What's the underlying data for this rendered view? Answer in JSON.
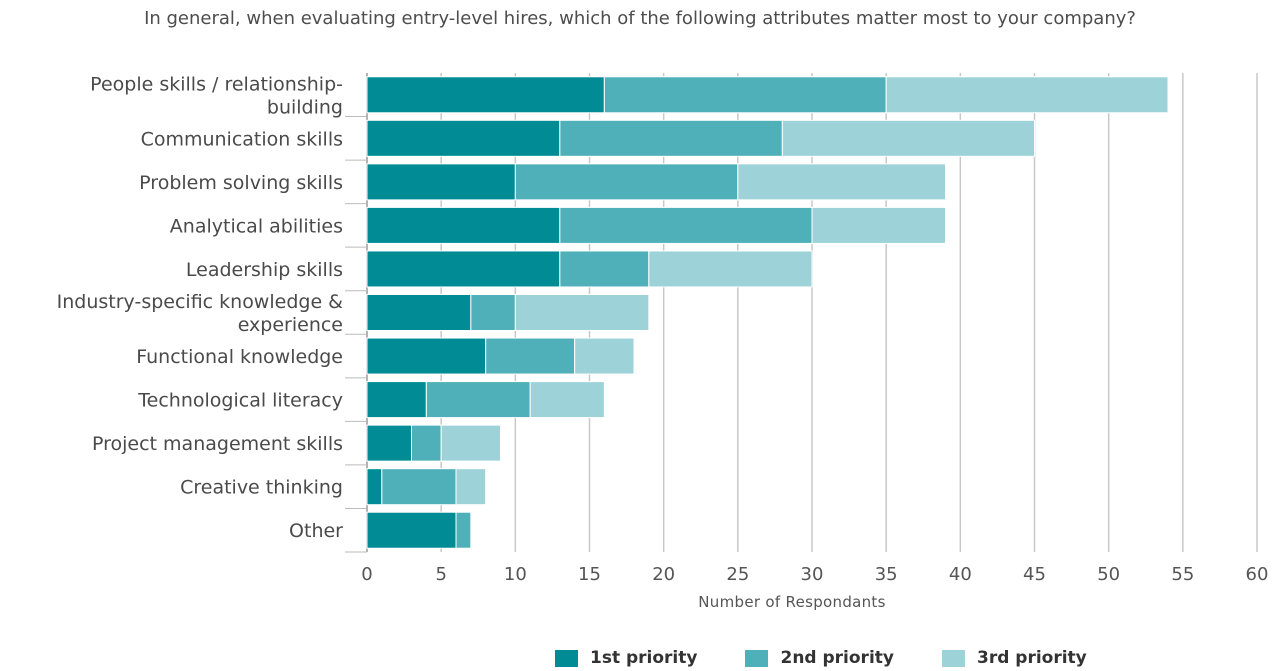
{
  "chart_data": {
    "type": "bar",
    "orientation": "horizontal",
    "stacked": true,
    "title": "In general, when evaluating entry-level hires, which of the following attributes matter most to your company?",
    "xlabel": "Number of Respondants",
    "ylabel": "",
    "xlim": [
      0,
      60
    ],
    "xticks": [
      0,
      5,
      10,
      15,
      20,
      25,
      30,
      35,
      40,
      45,
      50,
      55,
      60
    ],
    "grid": "vertical",
    "legend_position": "bottom",
    "categories": [
      "People skills / relationship-building",
      "Communication skills",
      "Problem solving skills",
      "Analytical abilities",
      "Leadership skills",
      "Industry-specific knowledge & experience",
      "Functional knowledge",
      "Technological literacy",
      "Project management skills",
      "Creative thinking",
      "Other"
    ],
    "category_lines": [
      [
        "People skills / relationship-",
        "building"
      ],
      [
        "Communication skills"
      ],
      [
        "Problem solving skills"
      ],
      [
        "Analytical abilities"
      ],
      [
        "Leadership skills"
      ],
      [
        "Industry-specific knowledge &",
        "experience"
      ],
      [
        "Functional knowledge"
      ],
      [
        "Technological literacy"
      ],
      [
        "Project management skills"
      ],
      [
        "Creative thinking"
      ],
      [
        "Other"
      ]
    ],
    "series": [
      {
        "name": "1st priority",
        "color": "#008b95",
        "values": [
          16,
          13,
          10,
          13,
          13,
          7,
          8,
          4,
          3,
          1,
          6
        ]
      },
      {
        "name": "2nd priority",
        "color": "#4fb0b9",
        "values": [
          19,
          15,
          15,
          17,
          6,
          3,
          6,
          7,
          2,
          5,
          1
        ]
      },
      {
        "name": "3rd priority",
        "color": "#9dd3d8",
        "values": [
          19,
          17,
          14,
          9,
          11,
          9,
          4,
          5,
          4,
          2,
          0
        ]
      }
    ]
  }
}
